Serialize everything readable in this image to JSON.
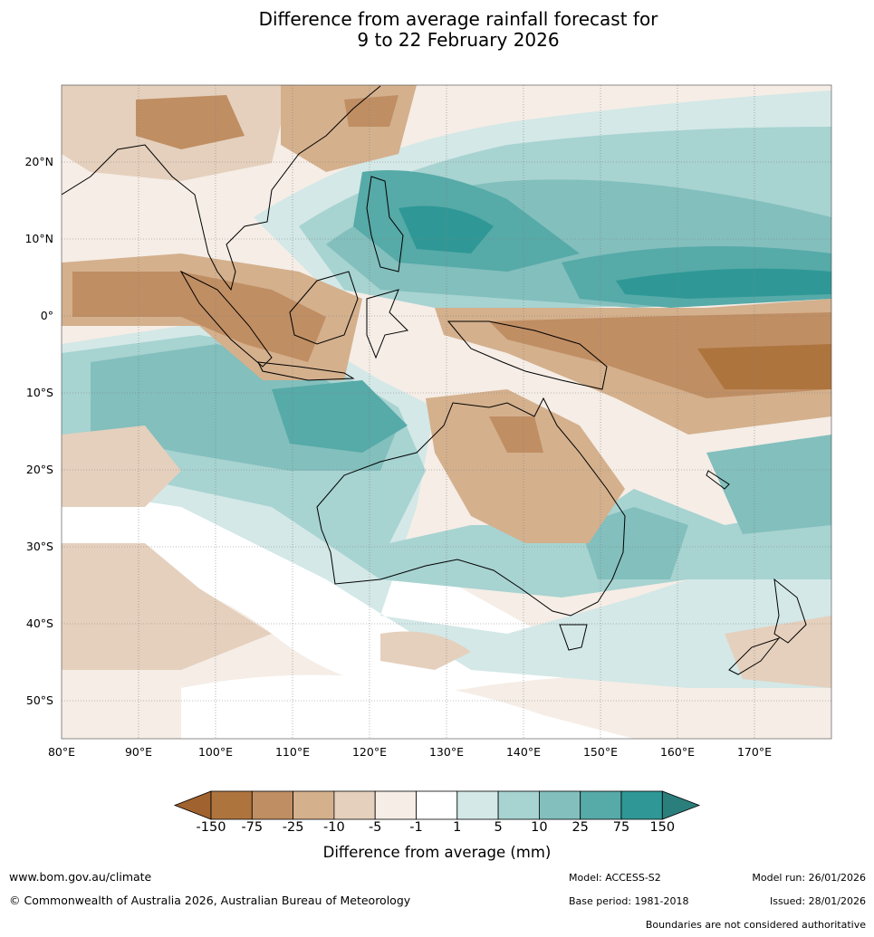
{
  "title": {
    "line1": "Difference from average rainfall forecast for",
    "line2": "9 to 22 February 2026"
  },
  "map": {
    "lon_ticks": [
      "80°E",
      "90°E",
      "100°E",
      "110°E",
      "120°E",
      "130°E",
      "140°E",
      "150°E",
      "160°E",
      "170°E"
    ],
    "lat_ticks": [
      "20°N",
      "10°N",
      "0°",
      "10°S",
      "20°S",
      "30°S",
      "40°S",
      "50°S"
    ],
    "extent": {
      "lon_min": 80,
      "lon_max": 180,
      "lat_min": -55,
      "lat_max": 30
    }
  },
  "colorbar": {
    "title": "Difference from average (mm)",
    "labels": [
      "-150",
      "-75",
      "-25",
      "-10",
      "-5",
      "-1",
      "1",
      "5",
      "10",
      "25",
      "75",
      "150"
    ],
    "colors": [
      "#a0622e",
      "#ae743e",
      "#c08e63",
      "#d4b08d",
      "#e5d0bd",
      "#f5ede6",
      "#ffffff",
      "#d3e8e7",
      "#a7d3d1",
      "#82bfbd",
      "#56aaa8",
      "#2f9896",
      "#2a7f7d"
    ]
  },
  "footer": {
    "url": "www.bom.gov.au/climate",
    "copyright": "© Commonwealth of Australia 2026, Australian Bureau of Meteorology",
    "model": "Model: ACCESS-S2",
    "base_period": "Base period: 1981-2018",
    "model_run": "Model run: 26/01/2026",
    "issued": "Issued: 28/01/2026",
    "disclaimer": "Boundaries are not considered authoritative"
  }
}
